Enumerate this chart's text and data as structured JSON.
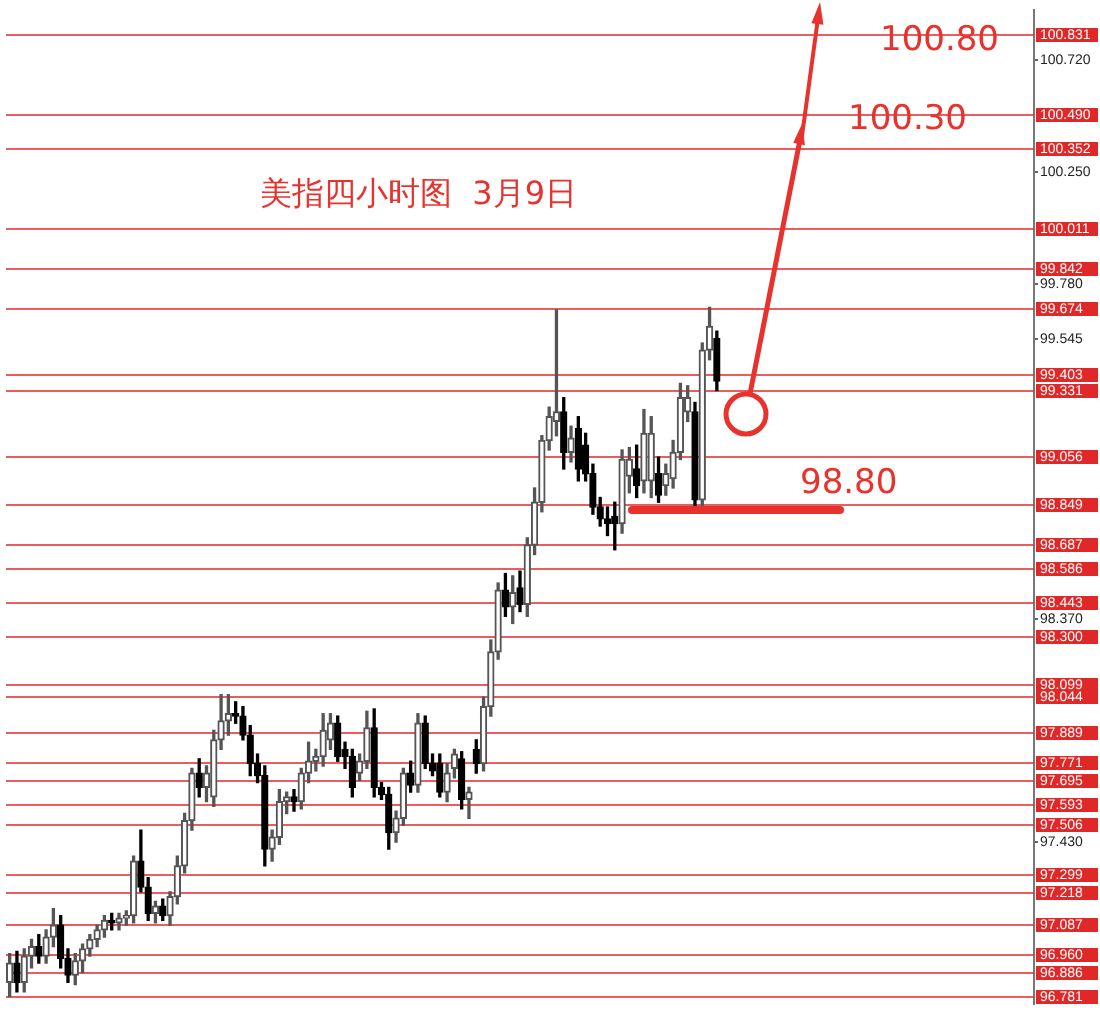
{
  "chart_data": {
    "type": "candlestick",
    "title": "美指四小时图  3月9日",
    "categories": [
      null,
      null,
      null,
      null,
      null,
      null,
      null,
      null,
      null,
      null,
      null,
      null,
      null,
      null,
      null,
      null,
      null,
      null,
      null,
      null,
      null,
      null,
      null,
      null,
      null,
      null,
      null,
      null,
      null,
      null,
      null,
      null,
      null,
      null,
      null,
      null,
      null,
      null,
      null,
      null,
      null,
      null,
      null,
      null,
      null,
      null,
      null,
      null,
      null,
      null,
      null,
      null,
      null,
      null,
      null,
      null,
      null,
      null,
      null,
      null,
      null,
      null,
      null,
      null,
      null,
      null,
      null,
      null,
      null,
      null,
      null,
      null,
      null,
      null,
      null,
      null,
      null,
      null,
      null,
      null,
      null,
      null,
      null,
      null,
      null,
      null,
      null,
      null,
      null,
      null,
      null,
      null,
      null,
      null,
      null,
      null,
      null,
      null,
      null,
      null,
      null,
      null,
      null,
      null,
      null,
      null,
      null,
      null,
      null,
      null,
      null,
      null,
      null,
      null,
      null,
      null,
      null,
      null,
      null,
      null,
      null,
      null,
      null,
      null,
      null,
      null,
      null,
      null,
      null,
      null,
      null,
      null,
      null,
      null,
      null,
      null,
      null,
      null,
      null,
      null,
      null
    ],
    "ohlc": [
      [
        96.84,
        96.96,
        96.78,
        96.92
      ],
      [
        96.92,
        96.97,
        96.8,
        96.84
      ],
      [
        96.84,
        96.98,
        96.8,
        96.95
      ],
      [
        96.95,
        97.02,
        96.9,
        96.99
      ],
      [
        96.99,
        97.04,
        96.92,
        96.95
      ],
      [
        96.95,
        97.06,
        96.92,
        97.03
      ],
      [
        97.03,
        97.15,
        96.99,
        97.08
      ],
      [
        97.08,
        97.12,
        96.9,
        96.94
      ],
      [
        96.94,
        96.98,
        96.84,
        96.87
      ],
      [
        96.87,
        96.96,
        96.83,
        96.93
      ],
      [
        96.93,
        97.0,
        96.88,
        96.98
      ],
      [
        96.98,
        97.04,
        96.95,
        97.02
      ],
      [
        97.02,
        97.08,
        96.99,
        97.06
      ],
      [
        97.06,
        97.12,
        97.03,
        97.1
      ],
      [
        97.1,
        97.13,
        97.06,
        97.09
      ],
      [
        97.09,
        97.13,
        97.06,
        97.11
      ],
      [
        97.11,
        97.14,
        97.08,
        97.12
      ],
      [
        97.12,
        97.37,
        97.09,
        97.35
      ],
      [
        97.35,
        97.48,
        97.22,
        97.24
      ],
      [
        97.24,
        97.28,
        97.1,
        97.13
      ],
      [
        97.13,
        97.18,
        97.09,
        97.16
      ],
      [
        97.16,
        97.19,
        97.1,
        97.12
      ],
      [
        97.12,
        97.22,
        97.08,
        97.2
      ],
      [
        97.2,
        97.37,
        97.17,
        97.33
      ],
      [
        97.33,
        97.55,
        97.3,
        97.52
      ],
      [
        97.52,
        97.74,
        97.48,
        97.72
      ],
      [
        97.72,
        97.78,
        97.62,
        97.66
      ],
      [
        97.66,
        97.75,
        97.6,
        97.72
      ],
      [
        97.62,
        97.9,
        97.58,
        97.86
      ],
      [
        97.86,
        98.05,
        97.82,
        97.94
      ],
      [
        97.94,
        98.05,
        97.88,
        97.97
      ],
      [
        97.97,
        98.02,
        97.93,
        97.96
      ],
      [
        97.96,
        98.0,
        97.86,
        97.88
      ],
      [
        97.88,
        97.92,
        97.71,
        97.76
      ],
      [
        97.76,
        97.8,
        97.68,
        97.71
      ],
      [
        97.71,
        97.75,
        97.33,
        97.4
      ],
      [
        97.4,
        97.48,
        97.35,
        97.45
      ],
      [
        97.45,
        97.65,
        97.42,
        97.6
      ],
      [
        97.6,
        97.64,
        97.55,
        97.62
      ],
      [
        97.62,
        97.65,
        97.56,
        97.6
      ],
      [
        97.6,
        97.74,
        97.57,
        97.72
      ],
      [
        97.72,
        97.85,
        97.68,
        97.77
      ],
      [
        97.77,
        97.82,
        97.73,
        97.79
      ],
      [
        97.79,
        97.97,
        97.75,
        97.9
      ],
      [
        97.86,
        97.97,
        97.82,
        97.93
      ],
      [
        97.93,
        97.96,
        97.77,
        97.79
      ],
      [
        97.82,
        97.85,
        97.74,
        97.79
      ],
      [
        97.79,
        97.82,
        97.62,
        97.66
      ],
      [
        97.72,
        97.8,
        97.69,
        97.77
      ],
      [
        97.77,
        97.98,
        97.74,
        97.91
      ],
      [
        97.91,
        97.99,
        97.62,
        97.66
      ],
      [
        97.66,
        97.68,
        97.61,
        97.63
      ],
      [
        97.63,
        97.66,
        97.4,
        97.47
      ],
      [
        97.47,
        97.56,
        97.43,
        97.53
      ],
      [
        97.53,
        97.74,
        97.5,
        97.72
      ],
      [
        97.72,
        97.77,
        97.64,
        97.67
      ],
      [
        97.67,
        97.97,
        97.64,
        97.93
      ],
      [
        97.93,
        97.96,
        97.74,
        97.76
      ],
      [
        97.76,
        97.8,
        97.71,
        97.73
      ],
      [
        97.76,
        97.8,
        97.62,
        97.64
      ],
      [
        97.64,
        97.76,
        97.6,
        97.72
      ],
      [
        97.74,
        97.82,
        97.7,
        97.8
      ],
      [
        97.78,
        97.81,
        97.57,
        97.61
      ],
      [
        97.61,
        97.66,
        97.53,
        97.64
      ],
      [
        97.82,
        97.86,
        97.72,
        97.76
      ],
      [
        97.76,
        98.04,
        97.73,
        98.0
      ],
      [
        98.0,
        98.28,
        97.96,
        98.23
      ],
      [
        98.23,
        98.52,
        98.2,
        98.49
      ],
      [
        98.49,
        98.56,
        98.38,
        98.42
      ],
      [
        98.42,
        98.55,
        98.35,
        98.48
      ],
      [
        98.5,
        98.57,
        98.4,
        98.43
      ],
      [
        98.43,
        98.71,
        98.38,
        98.68
      ],
      [
        98.68,
        98.92,
        98.64,
        98.86
      ],
      [
        98.86,
        99.14,
        98.82,
        99.12
      ],
      [
        99.12,
        99.26,
        99.08,
        99.22
      ],
      [
        99.2,
        99.67,
        99.14,
        99.24
      ],
      [
        99.24,
        99.3,
        99.0,
        99.07
      ],
      [
        99.07,
        99.18,
        99.03,
        99.13
      ],
      [
        99.17,
        99.22,
        98.95,
        99.0
      ],
      [
        99.1,
        99.15,
        98.95,
        98.98
      ],
      [
        98.98,
        99.02,
        98.81,
        98.84
      ],
      [
        98.84,
        98.88,
        98.76,
        98.79
      ],
      [
        98.79,
        98.84,
        98.72,
        98.77
      ],
      [
        98.8,
        98.86,
        98.66,
        98.77
      ],
      [
        98.77,
        99.08,
        98.73,
        99.04
      ],
      [
        98.97,
        99.09,
        98.9,
        99.04
      ],
      [
        99.0,
        99.1,
        98.88,
        98.93
      ],
      [
        98.95,
        99.25,
        98.9,
        99.15
      ],
      [
        98.95,
        99.22,
        98.88,
        99.15
      ],
      [
        98.98,
        99.05,
        98.86,
        98.89
      ],
      [
        98.93,
        99.02,
        98.89,
        98.98
      ],
      [
        98.96,
        99.12,
        98.92,
        99.07
      ],
      [
        99.07,
        99.36,
        99.04,
        99.3
      ],
      [
        99.24,
        99.35,
        99.2,
        99.3
      ],
      [
        99.24,
        99.28,
        98.82,
        98.87
      ],
      [
        98.87,
        99.53,
        98.84,
        99.5
      ],
      [
        99.5,
        99.68,
        99.46,
        99.6
      ],
      [
        99.55,
        99.58,
        99.33,
        99.37
      ],
      null,
      null,
      null,
      null,
      null,
      null,
      null,
      null,
      null,
      null,
      null,
      null,
      null,
      null,
      null,
      null,
      null,
      null,
      null,
      null,
      null,
      null,
      null,
      null,
      null,
      null,
      null,
      null,
      null,
      null,
      null,
      null,
      null,
      null,
      null,
      null,
      null,
      null,
      null,
      null,
      null,
      null,
      null
    ],
    "ylim": [
      96.75,
      100.93
    ],
    "yticks": [
      {
        "value": 97.43,
        "label": "97.430"
      },
      {
        "value": 98.37,
        "label": "98.370"
      },
      {
        "value": 99.545,
        "label": "99.545"
      },
      {
        "value": 99.78,
        "label": "99.780"
      },
      {
        "value": 100.25,
        "label": "100.250"
      },
      {
        "value": 100.72,
        "label": "100.720"
      }
    ],
    "tick_labels": "y",
    "ref_lines": [
      {
        "axis": "y",
        "value": 100.831,
        "label": "100.831",
        "color": "#e02828"
      },
      {
        "axis": "y",
        "value": 100.49,
        "label": "100.490",
        "color": "#e02828"
      },
      {
        "axis": "y",
        "value": 100.352,
        "label": "100.352",
        "color": "#e02828"
      },
      {
        "axis": "y",
        "value": 100.011,
        "label": "100.011",
        "color": "#e02828"
      },
      {
        "axis": "y",
        "value": 99.842,
        "label": "99.842",
        "color": "#e02828"
      },
      {
        "axis": "y",
        "value": 99.674,
        "label": "99.674",
        "color": "#e02828"
      },
      {
        "axis": "y",
        "value": 99.403,
        "label": "99.403",
        "color": "#e02828"
      },
      {
        "axis": "y",
        "value": 99.331,
        "label": "99.331",
        "color": "#e02828"
      },
      {
        "axis": "y",
        "value": 99.056,
        "label": "99.056",
        "color": "#e02828"
      },
      {
        "axis": "y",
        "value": 98.849,
        "label": "98.849",
        "color": "#e02828"
      },
      {
        "axis": "y",
        "value": 98.687,
        "label": "98.687",
        "color": "#e02828"
      },
      {
        "axis": "y",
        "value": 98.586,
        "label": "98.586",
        "color": "#e02828"
      },
      {
        "axis": "y",
        "value": 98.443,
        "label": "98.443",
        "color": "#e02828"
      },
      {
        "axis": "y",
        "value": 98.3,
        "label": "98.300",
        "color": "#e02828"
      },
      {
        "axis": "y",
        "value": 98.099,
        "label": "98.099",
        "color": "#e02828"
      },
      {
        "axis": "y",
        "value": 98.044,
        "label": "98.044",
        "color": "#e02828"
      },
      {
        "axis": "y",
        "value": 97.889,
        "label": "97.889",
        "color": "#e02828"
      },
      {
        "axis": "y",
        "value": 97.771,
        "label": "97.771",
        "color": "#e02828"
      },
      {
        "axis": "y",
        "value": 97.695,
        "label": "97.695",
        "color": "#e02828"
      },
      {
        "axis": "y",
        "value": 97.593,
        "label": "97.593",
        "color": "#e02828"
      },
      {
        "axis": "y",
        "value": 97.506,
        "label": "97.506",
        "color": "#e02828"
      },
      {
        "axis": "y",
        "value": 97.299,
        "label": "97.299",
        "color": "#e02828"
      },
      {
        "axis": "y",
        "value": 97.218,
        "label": "97.218",
        "color": "#e02828"
      },
      {
        "axis": "y",
        "value": 97.087,
        "label": "97.087",
        "color": "#e02828"
      },
      {
        "axis": "y",
        "value": 96.96,
        "label": "96.960",
        "color": "#e02828"
      },
      {
        "axis": "y",
        "value": 96.886,
        "label": "96.886",
        "color": "#e02828"
      },
      {
        "axis": "y",
        "value": 96.781,
        "label": "96.781",
        "color": "#e02828"
      }
    ],
    "annotations": [
      {
        "text": "100.80",
        "y": 100.8
      },
      "100.30",
      "98.80"
    ]
  }
}
